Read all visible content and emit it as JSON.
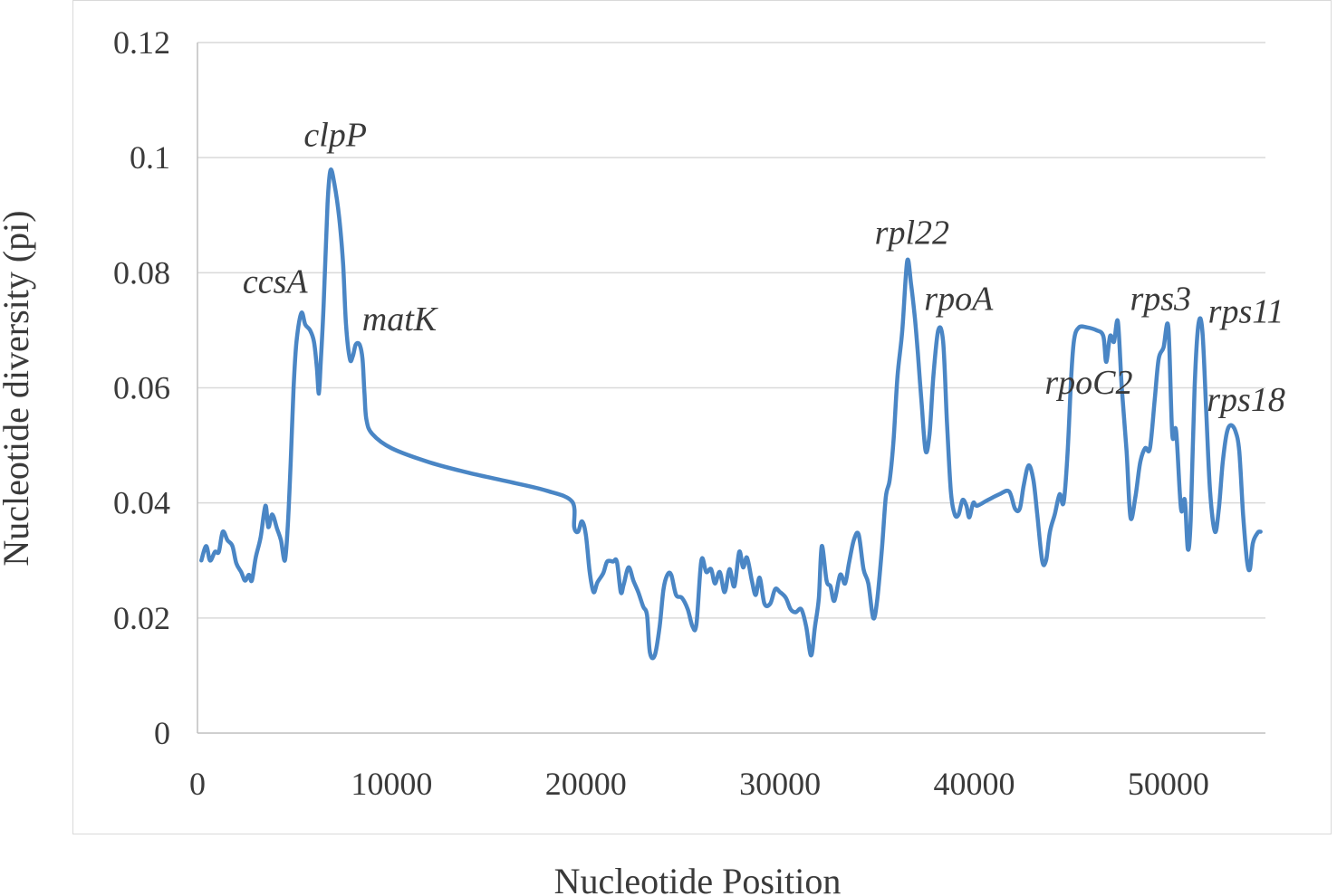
{
  "chart_data": {
    "type": "line",
    "title": "",
    "xlabel": "Nucleotide Position",
    "ylabel": "Nucleotide diversity (pi)",
    "xlim": [
      0,
      55000
    ],
    "ylim": [
      0,
      0.12
    ],
    "xticks": [
      0,
      10000,
      20000,
      30000,
      40000,
      50000
    ],
    "xtick_labels": [
      "0",
      "10000",
      "20000",
      "30000",
      "40000",
      "50000"
    ],
    "yticks": [
      0,
      0.02,
      0.04,
      0.06,
      0.08,
      0.1,
      0.12
    ],
    "ytick_labels": [
      "0",
      "0.02",
      "0.04",
      "0.06",
      "0.08",
      "0.1",
      "0.12"
    ],
    "grid": "horizontal",
    "line_color": "#4a86c5",
    "series": [
      {
        "points": [
          [
            200,
            0.03
          ],
          [
            450,
            0.0325
          ],
          [
            650,
            0.03
          ],
          [
            900,
            0.0315
          ],
          [
            1100,
            0.0315
          ],
          [
            1300,
            0.035
          ],
          [
            1550,
            0.0335
          ],
          [
            1800,
            0.0325
          ],
          [
            2000,
            0.0295
          ],
          [
            2250,
            0.028
          ],
          [
            2450,
            0.0265
          ],
          [
            2650,
            0.0275
          ],
          [
            2800,
            0.0265
          ],
          [
            3000,
            0.0305
          ],
          [
            3250,
            0.034
          ],
          [
            3500,
            0.0395
          ],
          [
            3650,
            0.0358
          ],
          [
            3850,
            0.038
          ],
          [
            4100,
            0.0355
          ],
          [
            4300,
            0.0335
          ],
          [
            4500,
            0.03
          ],
          [
            4650,
            0.036
          ],
          [
            4800,
            0.047
          ],
          [
            4950,
            0.06
          ],
          [
            5100,
            0.068
          ],
          [
            5350,
            0.073
          ],
          [
            5550,
            0.071
          ],
          [
            5800,
            0.07
          ],
          [
            6000,
            0.068
          ],
          [
            6150,
            0.0635
          ],
          [
            6250,
            0.059
          ],
          [
            6350,
            0.0645
          ],
          [
            6500,
            0.0745
          ],
          [
            6700,
            0.092
          ],
          [
            6850,
            0.0978
          ],
          [
            7050,
            0.0955
          ],
          [
            7300,
            0.0895
          ],
          [
            7500,
            0.0815
          ],
          [
            7650,
            0.071
          ],
          [
            7850,
            0.065
          ],
          [
            8000,
            0.0655
          ],
          [
            8150,
            0.0675
          ],
          [
            8350,
            0.0675
          ],
          [
            8500,
            0.065
          ],
          [
            8600,
            0.059
          ],
          [
            8700,
            0.0545
          ],
          [
            9000,
            0.052
          ],
          [
            10000,
            0.0495
          ],
          [
            12000,
            0.047
          ],
          [
            14000,
            0.0452
          ],
          [
            16000,
            0.0437
          ],
          [
            18000,
            0.0421
          ],
          [
            19300,
            0.0402
          ],
          [
            19400,
            0.0358
          ],
          [
            19600,
            0.035
          ],
          [
            19800,
            0.0368
          ],
          [
            20000,
            0.0345
          ],
          [
            20200,
            0.028
          ],
          [
            20400,
            0.0245
          ],
          [
            20600,
            0.0262
          ],
          [
            20900,
            0.0278
          ],
          [
            21100,
            0.0298
          ],
          [
            21400,
            0.0298
          ],
          [
            21600,
            0.0298
          ],
          [
            21800,
            0.0245
          ],
          [
            21950,
            0.0258
          ],
          [
            22200,
            0.0288
          ],
          [
            22450,
            0.0265
          ],
          [
            22700,
            0.0245
          ],
          [
            22950,
            0.022
          ],
          [
            23150,
            0.0205
          ],
          [
            23300,
            0.014
          ],
          [
            23550,
            0.0135
          ],
          [
            23800,
            0.0185
          ],
          [
            24000,
            0.025
          ],
          [
            24200,
            0.0275
          ],
          [
            24400,
            0.0275
          ],
          [
            24650,
            0.024
          ],
          [
            24950,
            0.0235
          ],
          [
            25250,
            0.0215
          ],
          [
            25500,
            0.0185
          ],
          [
            25700,
            0.019
          ],
          [
            25950,
            0.03
          ],
          [
            26200,
            0.028
          ],
          [
            26450,
            0.0285
          ],
          [
            26650,
            0.026
          ],
          [
            26900,
            0.028
          ],
          [
            27150,
            0.0245
          ],
          [
            27400,
            0.0285
          ],
          [
            27650,
            0.0255
          ],
          [
            27900,
            0.0315
          ],
          [
            28100,
            0.0288
          ],
          [
            28300,
            0.0305
          ],
          [
            28550,
            0.0265
          ],
          [
            28750,
            0.024
          ],
          [
            28950,
            0.027
          ],
          [
            29200,
            0.0225
          ],
          [
            29500,
            0.0225
          ],
          [
            29750,
            0.025
          ],
          [
            30000,
            0.0245
          ],
          [
            30300,
            0.0235
          ],
          [
            30550,
            0.0215
          ],
          [
            30800,
            0.021
          ],
          [
            31100,
            0.0215
          ],
          [
            31350,
            0.0185
          ],
          [
            31600,
            0.0135
          ],
          [
            31800,
            0.0185
          ],
          [
            32000,
            0.0235
          ],
          [
            32150,
            0.0325
          ],
          [
            32400,
            0.0265
          ],
          [
            32600,
            0.0255
          ],
          [
            32800,
            0.023
          ],
          [
            33100,
            0.0275
          ],
          [
            33350,
            0.026
          ],
          [
            33550,
            0.0295
          ],
          [
            33800,
            0.0335
          ],
          [
            34050,
            0.0345
          ],
          [
            34300,
            0.0285
          ],
          [
            34550,
            0.026
          ],
          [
            34800,
            0.02
          ],
          [
            35000,
            0.023
          ],
          [
            35250,
            0.032
          ],
          [
            35450,
            0.041
          ],
          [
            35650,
            0.044
          ],
          [
            35850,
            0.051
          ],
          [
            36050,
            0.062
          ],
          [
            36300,
            0.07
          ],
          [
            36550,
            0.082
          ],
          [
            36750,
            0.078
          ],
          [
            36950,
            0.072
          ],
          [
            37100,
            0.066
          ],
          [
            37300,
            0.057
          ],
          [
            37500,
            0.049
          ],
          [
            37700,
            0.052
          ],
          [
            37900,
            0.062
          ],
          [
            38150,
            0.07
          ],
          [
            38400,
            0.068
          ],
          [
            38600,
            0.054
          ],
          [
            38800,
            0.042
          ],
          [
            39000,
            0.038
          ],
          [
            39200,
            0.038
          ],
          [
            39400,
            0.0405
          ],
          [
            39600,
            0.0395
          ],
          [
            39750,
            0.0375
          ],
          [
            39950,
            0.04
          ],
          [
            40150,
            0.0395
          ],
          [
            40700,
            0.0405
          ],
          [
            41300,
            0.0415
          ],
          [
            41800,
            0.042
          ],
          [
            42100,
            0.039
          ],
          [
            42350,
            0.039
          ],
          [
            42550,
            0.043
          ],
          [
            42800,
            0.0465
          ],
          [
            43050,
            0.044
          ],
          [
            43250,
            0.038
          ],
          [
            43500,
            0.03
          ],
          [
            43700,
            0.03
          ],
          [
            43900,
            0.035
          ],
          [
            44150,
            0.038
          ],
          [
            44400,
            0.0415
          ],
          [
            44600,
            0.04
          ],
          [
            44800,
            0.048
          ],
          [
            45000,
            0.062
          ],
          [
            45150,
            0.0685
          ],
          [
            45400,
            0.0705
          ],
          [
            45800,
            0.0705
          ],
          [
            46300,
            0.07
          ],
          [
            46650,
            0.069
          ],
          [
            46800,
            0.0645
          ],
          [
            47000,
            0.069
          ],
          [
            47200,
            0.068
          ],
          [
            47400,
            0.0715
          ],
          [
            47600,
            0.06
          ],
          [
            47850,
            0.049
          ],
          [
            48050,
            0.0375
          ],
          [
            48300,
            0.041
          ],
          [
            48550,
            0.047
          ],
          [
            48800,
            0.0495
          ],
          [
            49050,
            0.0495
          ],
          [
            49300,
            0.058
          ],
          [
            49500,
            0.065
          ],
          [
            49750,
            0.067
          ],
          [
            50000,
            0.0705
          ],
          [
            50200,
            0.052
          ],
          [
            50400,
            0.0525
          ],
          [
            50650,
            0.039
          ],
          [
            50850,
            0.0405
          ],
          [
            51000,
            0.032
          ],
          [
            51150,
            0.037
          ],
          [
            51350,
            0.06
          ],
          [
            51550,
            0.071
          ],
          [
            51750,
            0.07
          ],
          [
            51950,
            0.056
          ],
          [
            52150,
            0.042
          ],
          [
            52400,
            0.035
          ],
          [
            52600,
            0.039
          ],
          [
            52800,
            0.047
          ],
          [
            53000,
            0.052
          ],
          [
            53200,
            0.0535
          ],
          [
            53450,
            0.0525
          ],
          [
            53650,
            0.049
          ],
          [
            53850,
            0.038
          ],
          [
            54050,
            0.03
          ],
          [
            54200,
            0.0285
          ],
          [
            54350,
            0.033
          ],
          [
            54600,
            0.0348
          ],
          [
            54750,
            0.035
          ]
        ]
      }
    ],
    "annotations": [
      {
        "text": "clpP",
        "x": 7100,
        "y": 0.102
      },
      {
        "text": "ccsA",
        "x": 4000,
        "y": 0.0765
      },
      {
        "text": "matK",
        "x": 10400,
        "y": 0.07
      },
      {
        "text": "rpl22",
        "x": 36800,
        "y": 0.085
      },
      {
        "text": "rpoA",
        "x": 39200,
        "y": 0.0735
      },
      {
        "text": "rpoC2",
        "x": 45900,
        "y": 0.059
      },
      {
        "text": "rps3",
        "x": 49600,
        "y": 0.0735
      },
      {
        "text": "rps11",
        "x": 54000,
        "y": 0.0713
      },
      {
        "text": "rps18",
        "x": 54000,
        "y": 0.056
      }
    ]
  }
}
